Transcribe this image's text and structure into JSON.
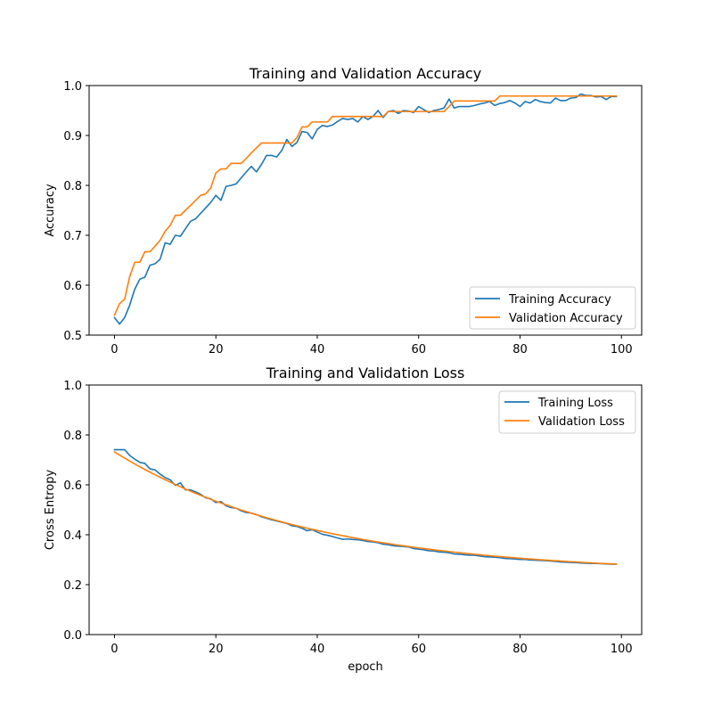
{
  "chart_data": [
    {
      "type": "line",
      "title": "Training and Validation Accuracy",
      "xlabel": "",
      "ylabel": "Accuracy",
      "xlim": [
        -5,
        104
      ],
      "ylim": [
        0.5,
        1.0
      ],
      "xticks": [
        0,
        20,
        40,
        60,
        80,
        100
      ],
      "yticks": [
        0.5,
        0.6,
        0.7,
        0.8,
        0.9,
        1.0
      ],
      "ytick_labels": [
        "0.5",
        "0.6",
        "0.7",
        "0.8",
        "0.9",
        "1.0"
      ],
      "grid": false,
      "legend_position": "lower-right",
      "series": [
        {
          "name": "Training Accuracy",
          "color": "#1f77b4",
          "values": [
            0.535,
            0.522,
            0.535,
            0.56,
            0.592,
            0.612,
            0.616,
            0.64,
            0.643,
            0.652,
            0.685,
            0.682,
            0.7,
            0.698,
            0.713,
            0.728,
            0.733,
            0.744,
            0.755,
            0.766,
            0.78,
            0.77,
            0.798,
            0.8,
            0.803,
            0.815,
            0.827,
            0.838,
            0.827,
            0.842,
            0.86,
            0.86,
            0.857,
            0.87,
            0.892,
            0.878,
            0.886,
            0.908,
            0.906,
            0.893,
            0.912,
            0.92,
            0.918,
            0.921,
            0.928,
            0.934,
            0.932,
            0.934,
            0.927,
            0.938,
            0.932,
            0.938,
            0.95,
            0.936,
            0.948,
            0.95,
            0.944,
            0.95,
            0.949,
            0.946,
            0.958,
            0.952,
            0.946,
            0.95,
            0.952,
            0.955,
            0.973,
            0.955,
            0.958,
            0.958,
            0.958,
            0.96,
            0.963,
            0.965,
            0.968,
            0.96,
            0.964,
            0.966,
            0.97,
            0.965,
            0.958,
            0.968,
            0.965,
            0.972,
            0.968,
            0.966,
            0.965,
            0.975,
            0.97,
            0.97,
            0.975,
            0.976,
            0.983,
            0.98,
            0.98,
            0.977,
            0.978,
            0.972,
            0.978,
            0.978
          ]
        },
        {
          "name": "Validation Accuracy",
          "color": "#ff7f0e",
          "values": [
            0.54,
            0.563,
            0.572,
            0.617,
            0.646,
            0.646,
            0.667,
            0.667,
            0.678,
            0.69,
            0.708,
            0.72,
            0.74,
            0.74,
            0.75,
            0.76,
            0.77,
            0.78,
            0.783,
            0.795,
            0.825,
            0.833,
            0.833,
            0.844,
            0.844,
            0.844,
            0.854,
            0.865,
            0.875,
            0.885,
            0.885,
            0.885,
            0.885,
            0.885,
            0.885,
            0.885,
            0.896,
            0.917,
            0.917,
            0.927,
            0.927,
            0.927,
            0.927,
            0.938,
            0.938,
            0.938,
            0.938,
            0.938,
            0.938,
            0.938,
            0.938,
            0.938,
            0.938,
            0.938,
            0.948,
            0.948,
            0.948,
            0.948,
            0.948,
            0.948,
            0.948,
            0.948,
            0.948,
            0.948,
            0.948,
            0.948,
            0.958,
            0.969,
            0.969,
            0.969,
            0.969,
            0.969,
            0.969,
            0.969,
            0.969,
            0.969,
            0.979,
            0.979,
            0.979,
            0.979,
            0.979,
            0.979,
            0.979,
            0.979,
            0.979,
            0.979,
            0.979,
            0.979,
            0.979,
            0.979,
            0.979,
            0.979,
            0.979,
            0.979,
            0.979,
            0.979,
            0.979,
            0.979,
            0.979,
            0.979
          ]
        }
      ]
    },
    {
      "type": "line",
      "title": "Training and Validation Loss",
      "xlabel": "epoch",
      "ylabel": "Cross Entropy",
      "xlim": [
        -5,
        104
      ],
      "ylim": [
        0.0,
        1.0
      ],
      "xticks": [
        0,
        20,
        40,
        60,
        80,
        100
      ],
      "yticks": [
        0.0,
        0.2,
        0.4,
        0.6,
        0.8,
        1.0
      ],
      "ytick_labels": [
        "0.0",
        "0.2",
        "0.4",
        "0.6",
        "0.8",
        "1.0"
      ],
      "grid": false,
      "legend_position": "upper-right",
      "series": [
        {
          "name": "Training Loss",
          "color": "#1f77b4",
          "values": [
            0.741,
            0.741,
            0.741,
            0.718,
            0.703,
            0.69,
            0.686,
            0.664,
            0.66,
            0.643,
            0.629,
            0.62,
            0.598,
            0.608,
            0.58,
            0.58,
            0.572,
            0.562,
            0.548,
            0.544,
            0.529,
            0.533,
            0.516,
            0.509,
            0.506,
            0.496,
            0.489,
            0.487,
            0.481,
            0.472,
            0.466,
            0.46,
            0.455,
            0.45,
            0.445,
            0.436,
            0.433,
            0.426,
            0.416,
            0.42,
            0.411,
            0.402,
            0.398,
            0.393,
            0.387,
            0.382,
            0.383,
            0.381,
            0.38,
            0.377,
            0.373,
            0.371,
            0.368,
            0.362,
            0.36,
            0.356,
            0.354,
            0.353,
            0.351,
            0.345,
            0.342,
            0.34,
            0.336,
            0.335,
            0.331,
            0.33,
            0.328,
            0.323,
            0.322,
            0.32,
            0.318,
            0.318,
            0.315,
            0.312,
            0.311,
            0.31,
            0.308,
            0.305,
            0.304,
            0.303,
            0.301,
            0.301,
            0.299,
            0.298,
            0.297,
            0.296,
            0.295,
            0.293,
            0.291,
            0.29,
            0.289,
            0.288,
            0.287,
            0.286,
            0.285,
            0.285,
            0.284,
            0.283,
            0.282,
            0.282
          ]
        },
        {
          "name": "Validation Loss",
          "color": "#ff7f0e",
          "fn": "exp",
          "fn_params": {
            "asymptote": 0.245,
            "amplitude": 0.487,
            "rate": 0.026
          }
        }
      ]
    }
  ]
}
